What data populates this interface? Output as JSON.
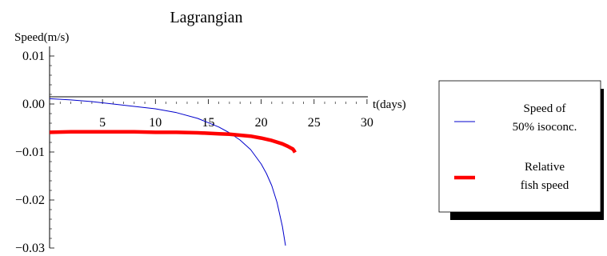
{
  "chart_data": {
    "type": "line",
    "title": "Lagrangian",
    "ylabel": "Speed(m/s)",
    "xlabel": "t(days)",
    "xlim": [
      0,
      30
    ],
    "ylim": [
      -0.03,
      0.01
    ],
    "xticks": [
      5,
      10,
      15,
      20,
      25,
      30
    ],
    "xtick_labels": [
      "5",
      "10",
      "15",
      "20",
      "25",
      "30"
    ],
    "yticks": [
      0.01,
      0.0,
      -0.01,
      -0.02,
      -0.03
    ],
    "ytick_labels": [
      "0.01",
      "0.00",
      "−0.01",
      "−0.02",
      "−0.03"
    ],
    "legend_placement": "right",
    "series": [
      {
        "name": "Speed of 50% isoconc.",
        "legend_lines": [
          "Speed of",
          "50% isoconc."
        ],
        "color": "#0000cc",
        "style": "thin",
        "x": [
          0,
          2,
          4,
          6,
          8,
          10,
          12,
          14,
          16,
          17,
          18,
          19,
          20,
          20.5,
          21,
          21.5,
          22,
          22.3
        ],
        "y": [
          0.0011,
          0.00085,
          0.0005,
          0.0,
          -0.0005,
          -0.001,
          -0.0018,
          -0.003,
          -0.0048,
          -0.006,
          -0.0075,
          -0.0095,
          -0.0125,
          -0.0145,
          -0.017,
          -0.0205,
          -0.0255,
          -0.0295
        ]
      },
      {
        "name": "Relative fish speed",
        "legend_lines": [
          "Relative",
          "fish speed"
        ],
        "color": "#ff0000",
        "style": "thick",
        "x": [
          0,
          2,
          4,
          6,
          8,
          10,
          12,
          14,
          16,
          17,
          18,
          19,
          20,
          21,
          22,
          22.5,
          23,
          23.1,
          23.2
        ],
        "y": [
          -0.0059,
          -0.0058,
          -0.0058,
          -0.0058,
          -0.0058,
          -0.0059,
          -0.0059,
          -0.006,
          -0.0062,
          -0.0063,
          -0.0065,
          -0.0067,
          -0.0071,
          -0.0076,
          -0.0083,
          -0.0088,
          -0.0094,
          -0.0097,
          -0.0101
        ]
      }
    ]
  }
}
